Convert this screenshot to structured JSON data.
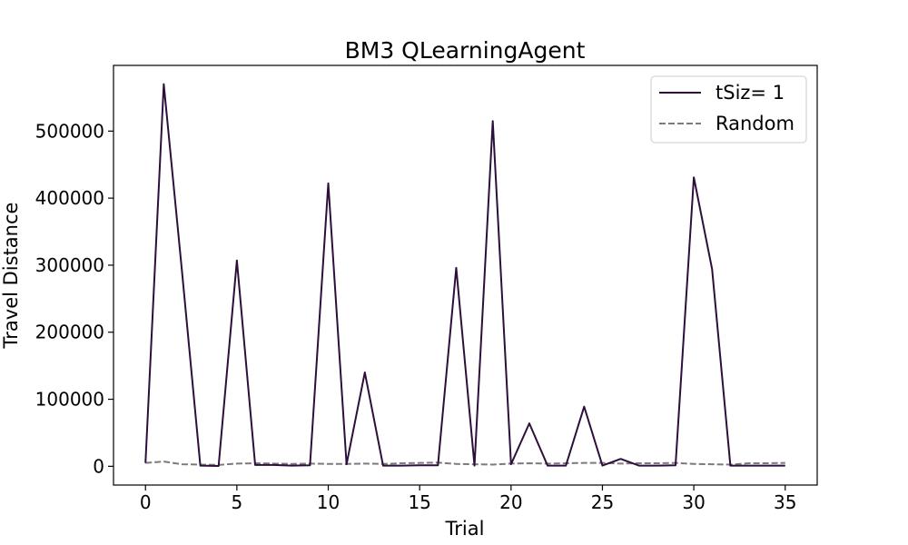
{
  "chart_data": {
    "type": "line",
    "title": "BM3  QLearningAgent",
    "xlabel": "Trial",
    "ylabel": "Travel Distance",
    "xlim": [
      -1.75,
      36.75
    ],
    "ylim": [
      -28000,
      598000
    ],
    "xticks": [
      0,
      5,
      10,
      15,
      20,
      25,
      30,
      35
    ],
    "yticks": [
      0,
      100000,
      200000,
      300000,
      400000,
      500000
    ],
    "grid": false,
    "legend_position": "top-right",
    "x": [
      0,
      1,
      2,
      3,
      4,
      5,
      6,
      7,
      8,
      9,
      10,
      11,
      12,
      13,
      14,
      15,
      16,
      17,
      18,
      19,
      20,
      21,
      22,
      23,
      24,
      25,
      26,
      27,
      28,
      29,
      30,
      31,
      32,
      33,
      34,
      35
    ],
    "series": [
      {
        "name": "tSiz= 1",
        "color": "#2d0f3b",
        "style": "solid",
        "values": [
          5000,
          570000,
          290000,
          1000,
          500,
          307000,
          2000,
          2000,
          1000,
          1500,
          422000,
          3000,
          140000,
          1000,
          1000,
          1500,
          1500,
          296000,
          1000,
          515000,
          3000,
          64000,
          1000,
          1000,
          89000,
          1000,
          11000,
          1000,
          1000,
          1500,
          431000,
          294000,
          1000,
          1000,
          1000,
          1000
        ]
      },
      {
        "name": "Random",
        "color": "#807880",
        "style": "dashed",
        "values": [
          5000,
          7000,
          3000,
          2500,
          2000,
          4000,
          4500,
          4000,
          3500,
          4000,
          3500,
          3500,
          4000,
          3500,
          4500,
          5000,
          5500,
          3500,
          3000,
          2500,
          4000,
          4500,
          4000,
          4500,
          5000,
          5000,
          4000,
          4500,
          4500,
          5000,
          3500,
          3000,
          2500,
          4500,
          4500,
          5000
        ]
      }
    ]
  }
}
